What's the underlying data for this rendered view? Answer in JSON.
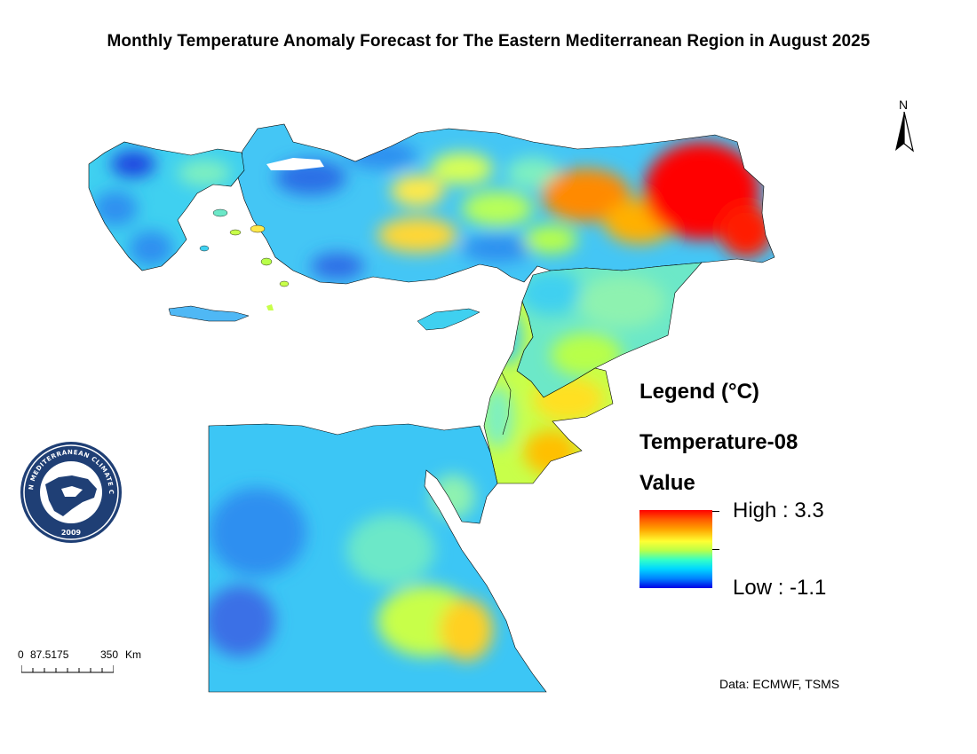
{
  "map": {
    "title": "Monthly Temperature Anomaly Forecast for The Eastern Mediterranean Region in August 2025",
    "north_label": "N",
    "credit": "Data: ECMWF, TSMS"
  },
  "legend": {
    "heading": "Legend (°C)",
    "layer_name": "Temperature-08",
    "field_name": "Value",
    "high_label": "High : 3.3",
    "low_label": "Low : -1.1",
    "high_value": 3.3,
    "low_value": -1.1,
    "color_ramp": [
      "#ff0000",
      "#ff5a00",
      "#ffa500",
      "#ffff33",
      "#b8ff4a",
      "#33ffc8",
      "#00d8ff",
      "#0080ff",
      "#0000e6"
    ]
  },
  "scale_bar": {
    "labels": [
      "0",
      "87.5175",
      "350",
      "Km"
    ]
  },
  "logo": {
    "text": "EASTERN MEDITERRANEAN CLIMATE CENTRE",
    "year": "2009",
    "ring_color": "#1f3f75"
  },
  "colors": {
    "very_cold": "#1f45e0",
    "cold": "#2d9bf5",
    "cool": "#3fd3f5",
    "neutral": "#7af0c0",
    "mild": "#c8ff4a",
    "warm": "#ffec2a",
    "hot": "#ff9a00",
    "very_hot": "#ff0000"
  }
}
